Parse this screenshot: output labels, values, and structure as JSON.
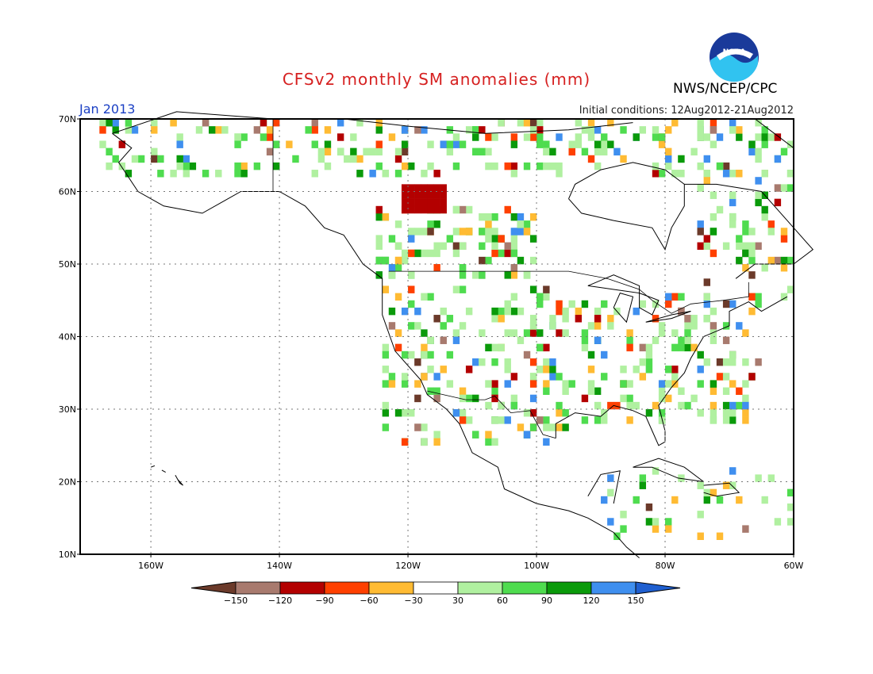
{
  "title": "CFSv2 monthly SM anomalies (mm)",
  "period": "Jan 2013",
  "initial_conditions": "Initial conditions: 12Aug2012-21Aug2012",
  "agency": "NWS/NCEP/CPC",
  "logo_text": "NOAA",
  "lat_labels": [
    "70N",
    "60N",
    "50N",
    "40N",
    "30N",
    "20N",
    "10N"
  ],
  "lon_labels": [
    "160W",
    "140W",
    "120W",
    "100W",
    "80W",
    "60W"
  ],
  "colorbar": {
    "labels": [
      "-150",
      "-120",
      "-90",
      "-60",
      "-30",
      "30",
      "60",
      "90",
      "120",
      "150"
    ],
    "colors": [
      "#6b3a2a",
      "#a87a6e",
      "#b30000",
      "#ff4000",
      "#ffbb33",
      "#ffffff",
      "#b0f0a0",
      "#4fdc4f",
      "#0a9a0a",
      "#3f8fef",
      "#1f5fd0"
    ]
  },
  "colors": {
    "title": "#d62020",
    "period": "#1a3fc4",
    "coast": "#000000"
  }
}
